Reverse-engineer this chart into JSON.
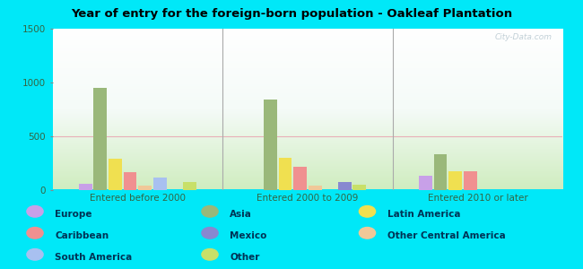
{
  "title": "Year of entry for the foreign-born population - Oakleaf Plantation",
  "categories": [
    "Entered before 2000",
    "Entered 2000 to 2009",
    "Entered 2010 or later"
  ],
  "series": {
    "Europe": [
      55,
      0,
      130
    ],
    "Asia": [
      950,
      840,
      330
    ],
    "Latin America": [
      290,
      295,
      175
    ],
    "Caribbean": [
      165,
      210,
      175
    ],
    "Other Central America": [
      40,
      40,
      0
    ],
    "South America": [
      115,
      0,
      0
    ],
    "Mexico": [
      0,
      75,
      0
    ],
    "Other": [
      70,
      45,
      0
    ]
  },
  "colors": {
    "Europe": "#c8a0e8",
    "Asia": "#9ab87a",
    "Latin America": "#f0e050",
    "Caribbean": "#f09090",
    "Other Central America": "#f0c898",
    "South America": "#a8c0f0",
    "Mexico": "#8888d0",
    "Other": "#c8e068"
  },
  "bar_order": [
    "Europe",
    "Asia",
    "Latin America",
    "Caribbean",
    "Other Central America",
    "South America",
    "Mexico",
    "Other"
  ],
  "ylim": [
    0,
    1500
  ],
  "yticks": [
    0,
    500,
    1000,
    1500
  ],
  "bg_outer": "#00e8f8",
  "watermark": "City-Data.com",
  "legend_layout": [
    [
      [
        "Europe",
        "Asia",
        "Latin America"
      ],
      [
        "Caribbean",
        "Mexico",
        "Other Central America"
      ],
      [
        "South America",
        "Other",
        null
      ]
    ]
  ]
}
